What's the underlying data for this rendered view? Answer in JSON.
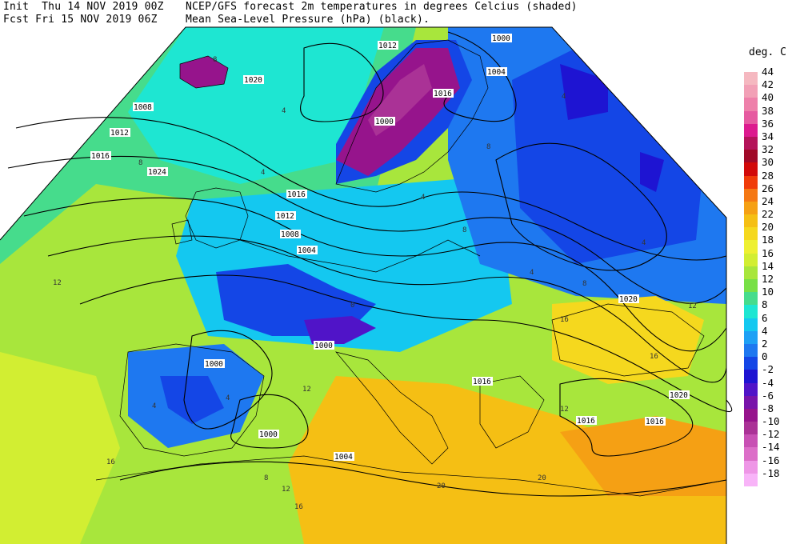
{
  "header": {
    "init": "Init  Thu 14 NOV 2019 00Z",
    "fcst": "Fcst Fri 15 NOV 2019 06Z",
    "desc_line1": "NCEP/GFS forecast 2m temperatures in degrees Celcius (shaded)",
    "desc_line2": "Mean Sea-Level Pressure (hPa) (black)."
  },
  "legend": {
    "title": "deg. C",
    "entries": [
      {
        "label": "44",
        "color": "#f5b8c0"
      },
      {
        "label": "42",
        "color": "#f2a0b6"
      },
      {
        "label": "40",
        "color": "#ee80aa"
      },
      {
        "label": "38",
        "color": "#e65aa0"
      },
      {
        "label": "36",
        "color": "#dc1a8e"
      },
      {
        "label": "34",
        "color": "#b4145a"
      },
      {
        "label": "32",
        "color": "#a00a28"
      },
      {
        "label": "30",
        "color": "#d20a0a"
      },
      {
        "label": "28",
        "color": "#f03c0a"
      },
      {
        "label": "26",
        "color": "#f57814"
      },
      {
        "label": "24",
        "color": "#f5a014"
      },
      {
        "label": "22",
        "color": "#f5bf14"
      },
      {
        "label": "20",
        "color": "#f5d81e"
      },
      {
        "label": "18",
        "color": "#eef032"
      },
      {
        "label": "16",
        "color": "#d2ee32"
      },
      {
        "label": "14",
        "color": "#a8e63c"
      },
      {
        "label": "12",
        "color": "#78e046"
      },
      {
        "label": "10",
        "color": "#46dc8c"
      },
      {
        "label": "8",
        "color": "#1ee6d2"
      },
      {
        "label": "6",
        "color": "#14c8f0"
      },
      {
        "label": "4",
        "color": "#1ea0f5"
      },
      {
        "label": "2",
        "color": "#1e78f0"
      },
      {
        "label": "0",
        "color": "#1446e6"
      },
      {
        "label": "-2",
        "color": "#1e14d2"
      },
      {
        "label": "-4",
        "color": "#5014c8"
      },
      {
        "label": "-6",
        "color": "#7814aa"
      },
      {
        "label": "-8",
        "color": "#96148c"
      },
      {
        "label": "-10",
        "color": "#aa3296"
      },
      {
        "label": "-12",
        "color": "#c850b4"
      },
      {
        "label": "-14",
        "color": "#dc6ec8"
      },
      {
        "label": "-16",
        "color": "#ee96e6"
      },
      {
        "label": "-18",
        "color": "#f8b4f8"
      }
    ]
  },
  "map": {
    "projection": "conic",
    "region": "Europe",
    "isobar_labels": [
      "1000",
      "1004",
      "1012",
      "1020",
      "1016",
      "1008",
      "1012",
      "1016",
      "1024",
      "1016",
      "1012",
      "1008",
      "1004",
      "1000",
      "1000",
      "1000",
      "1004",
      "1016",
      "1020",
      "1016",
      "1020",
      "1000",
      "1016"
    ],
    "temperature_labels": [
      "8",
      "4",
      "4",
      "0",
      "4",
      "8",
      "4",
      "4",
      "12",
      "8",
      "4",
      "8",
      "4",
      "4",
      "8",
      "12",
      "16",
      "12",
      "16",
      "20",
      "16",
      "20",
      "12",
      "16",
      "12",
      "8"
    ]
  }
}
